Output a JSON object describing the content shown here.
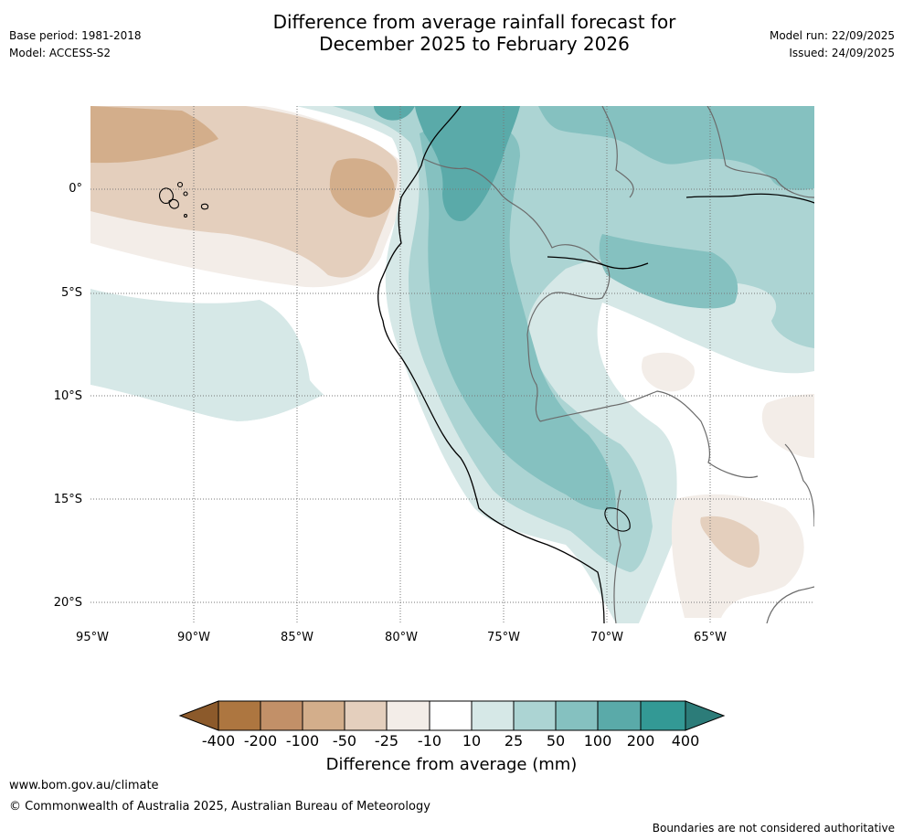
{
  "title": {
    "line1": "Difference from average rainfall forecast for",
    "line2": "December 2025 to February 2026"
  },
  "meta": {
    "base_period": "Base period: 1981-2018",
    "model": "Model: ACCESS-S2",
    "model_run": "Model run: 22/09/2025",
    "issued": "Issued: 24/09/2025"
  },
  "axes": {
    "lat_labels": [
      "0°",
      "5°S",
      "10°S",
      "15°S",
      "20°S"
    ],
    "lon_labels": [
      "95°W",
      "90°W",
      "85°W",
      "80°W",
      "75°W",
      "70°W",
      "65°W"
    ]
  },
  "colorbar": {
    "label": "Difference from average (mm)",
    "ticks": [
      "-400",
      "-200",
      "-100",
      "-50",
      "-25",
      "-10",
      "10",
      "25",
      "50",
      "100",
      "200",
      "400"
    ],
    "colors": [
      "#8c5a2b",
      "#ad7640",
      "#c29068",
      "#d3ae8b",
      "#e4cfbd",
      "#f3ede8",
      "#ffffff",
      "#d6e8e7",
      "#acd4d3",
      "#85c1c0",
      "#5aaaa9",
      "#339995",
      "#2c7c79"
    ]
  },
  "footer": {
    "website": "www.bom.gov.au/climate",
    "copyright": "© Commonwealth of Australia 2025, Australian Bureau of Meteorology",
    "disclaimer": "Boundaries are not considered authoritative"
  }
}
